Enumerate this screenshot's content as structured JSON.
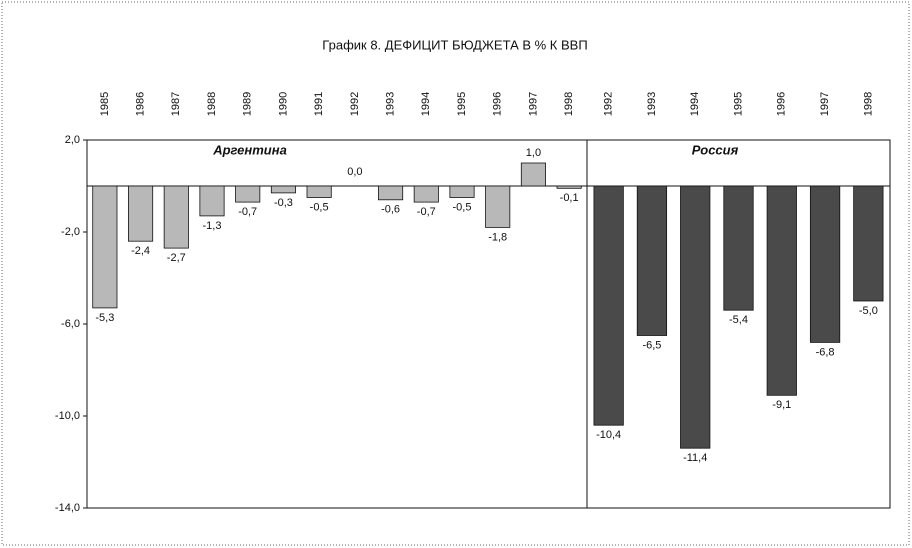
{
  "chart_data": [
    {
      "type": "bar",
      "title": "График 8. ДЕФИЦИТ БЮДЖЕТА В % К ВВП",
      "name": "Аргентина",
      "categories": [
        "1985",
        "1986",
        "1987",
        "1988",
        "1989",
        "1990",
        "1991",
        "1992",
        "1993",
        "1994",
        "1995",
        "1996",
        "1997",
        "1998"
      ],
      "values": [
        -5.3,
        -2.4,
        -2.7,
        -1.3,
        -0.7,
        -0.3,
        -0.5,
        0,
        -0.6,
        -0.7,
        -0.5,
        -1.8,
        1,
        -0.1
      ],
      "value_labels": [
        "-5,3",
        "-2,4",
        "-2,7",
        "-1,3",
        "-0,7",
        "-0,3",
        "-0,5",
        "0,0",
        "-0,6",
        "-0,7",
        "-0,5",
        "-1,8",
        "1,0",
        "-0,1"
      ],
      "color": "#b8b8b8",
      "ylim": [
        -14,
        2
      ],
      "yticks": [
        {
          "value": 2,
          "label": "2,0"
        },
        {
          "value": -2,
          "label": "-2,0"
        },
        {
          "value": -6,
          "label": "-6,0"
        },
        {
          "value": -10,
          "label": "-10,0"
        },
        {
          "value": -14,
          "label": "-14,0"
        }
      ]
    },
    {
      "type": "bar",
      "name": "Россия",
      "categories": [
        "1992",
        "1993",
        "1994",
        "1995",
        "1996",
        "1997",
        "1998"
      ],
      "values": [
        -10.4,
        -6.5,
        -11.4,
        -5.4,
        -9.1,
        -6.8,
        -5
      ],
      "value_labels": [
        "-10,4",
        "-6,5",
        "-11,4",
        "-5,4",
        "-9,1",
        "-6,8",
        "-5,0"
      ],
      "color": "#4a4a4a"
    }
  ]
}
